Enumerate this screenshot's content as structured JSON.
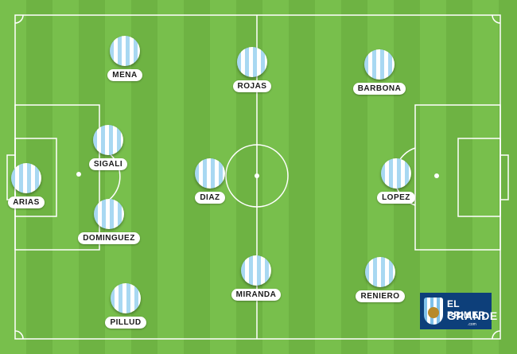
{
  "colors": {
    "grass_light": "#78bf4c",
    "grass_dark": "#6eb343",
    "lines": "#ffffff",
    "shirt_stripe": "#a8d8f2",
    "logo_bg": "#0d3f7a"
  },
  "players": [
    {
      "name": "MENA"
    },
    {
      "name": "ROJAS"
    },
    {
      "name": "BARBONA"
    },
    {
      "name": "SIGALI"
    },
    {
      "name": "ARIAS"
    },
    {
      "name": "DIAZ"
    },
    {
      "name": "LOPEZ"
    },
    {
      "name": "DOMINGUEZ"
    },
    {
      "name": "MIRANDA"
    },
    {
      "name": "RENIERO"
    },
    {
      "name": "PILLUD"
    }
  ],
  "logo": {
    "line1": "EL PRIMER",
    "line2": "GRANDE",
    "line3": ".com"
  }
}
